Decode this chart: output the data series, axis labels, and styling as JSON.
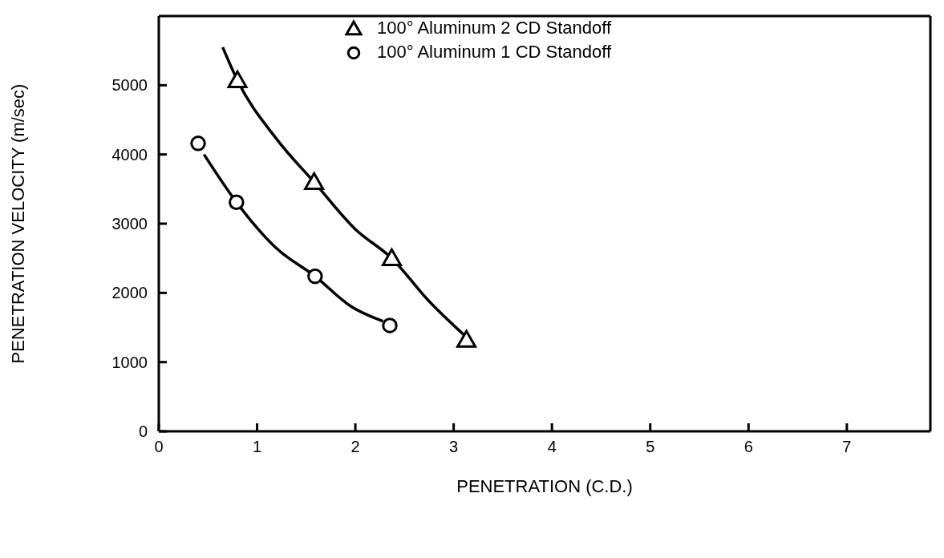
{
  "chart_data": {
    "type": "scatter",
    "xlabel": "PENETRATION (C.D.)",
    "ylabel": "PENETRATION VELOCITY (m/sec)",
    "xlim": [
      0,
      7.85
    ],
    "xticks": [
      0,
      1,
      2,
      3,
      4,
      5,
      6,
      7
    ],
    "ylim": [
      0,
      6000
    ],
    "yticks": [
      0,
      1000,
      2000,
      3000,
      4000,
      5000
    ],
    "legend": "top",
    "series": [
      {
        "name": "100° Aluminum 2 CD Standoff",
        "marker": "triangle",
        "color": "#000000",
        "x": [
          0.8,
          1.58,
          2.37,
          3.13
        ],
        "values": [
          5070,
          3600,
          2500,
          1320
        ]
      },
      {
        "name": "100° Aluminum 1 CD Standoff",
        "marker": "circle",
        "color": "#000000",
        "x": [
          0.4,
          0.79,
          1.59,
          2.35
        ],
        "values": [
          4160,
          3310,
          2240,
          1530
        ]
      },
      {
        "type": "line",
        "color": "#000000",
        "x": [
          0.65,
          0.8,
          1.2,
          1.58,
          2.0,
          2.37,
          2.75,
          3.1
        ],
        "values": [
          5550,
          5070,
          4220,
          3600,
          2920,
          2500,
          1880,
          1400
        ]
      },
      {
        "type": "line",
        "color": "#000000",
        "x": [
          0.46,
          0.79,
          1.2,
          1.59,
          1.95,
          2.28
        ],
        "values": [
          4000,
          3310,
          2640,
          2240,
          1810,
          1590
        ]
      }
    ]
  }
}
